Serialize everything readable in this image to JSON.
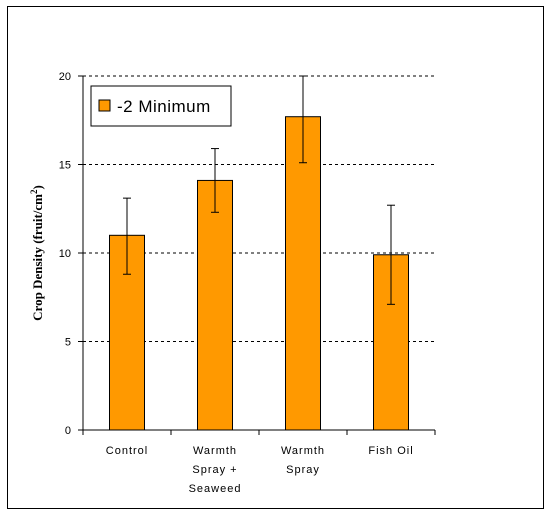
{
  "chart_data": {
    "type": "bar",
    "categories": [
      [
        "Control"
      ],
      [
        "Warmth",
        "Spray +",
        "Seaweed"
      ],
      [
        "Warmth",
        "Spray"
      ],
      [
        "Fish Oil"
      ]
    ],
    "series": [
      {
        "name": "-2 Minimum",
        "values": [
          11.0,
          14.1,
          17.7,
          9.9
        ],
        "error_high": [
          13.1,
          15.9,
          20.0,
          12.7
        ],
        "error_low": [
          8.8,
          12.3,
          15.1,
          7.1
        ]
      }
    ],
    "ylabel_main": "Crop Density (fruit/cm",
    "ylabel_sup": "2",
    "ylabel_end": ")",
    "ylim": [
      0,
      20
    ],
    "yticks": [
      0,
      5,
      10,
      15,
      20
    ],
    "grid": "dashed horizontal",
    "legend_placement": "top-left",
    "colors": {
      "bar": "#FF9900",
      "bar_stroke": "#000000",
      "grid": "#000000"
    }
  }
}
